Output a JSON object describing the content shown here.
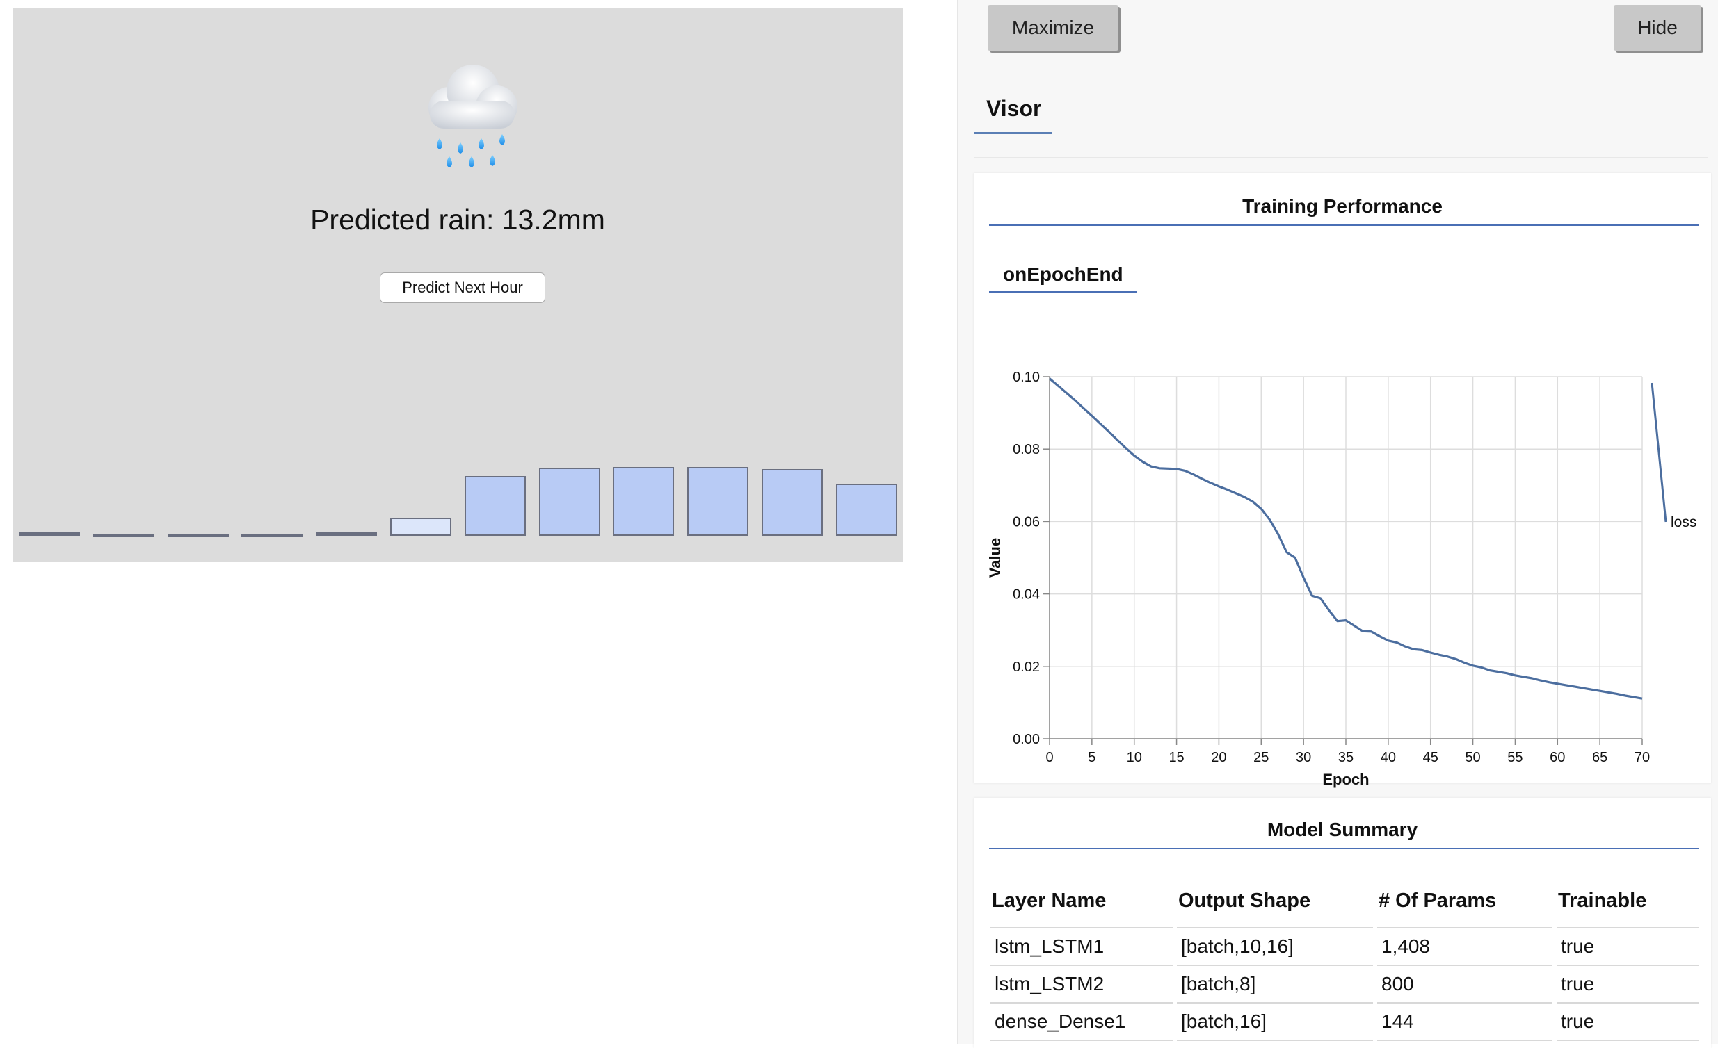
{
  "app": {
    "weather_icon": "cloud-with-rain-icon",
    "prediction_text": "Predicted rain: 13.2mm",
    "predict_button_label": "Predict Next Hour",
    "bars": [
      {
        "value": 0.012,
        "color": "#dde4f5"
      },
      {
        "value": 0.004,
        "color": "#dde4f5"
      },
      {
        "value": 0.002,
        "color": "#dde4f5"
      },
      {
        "value": 0.002,
        "color": "#dde4f5"
      },
      {
        "value": 0.012,
        "color": "#dde4f5"
      },
      {
        "value": 0.066,
        "color": "#dce6fa"
      },
      {
        "value": 0.214,
        "color": "#b8cbf5"
      },
      {
        "value": 0.245,
        "color": "#b8cbf5"
      },
      {
        "value": 0.248,
        "color": "#b8cbf5"
      },
      {
        "value": 0.248,
        "color": "#b8cbf5"
      },
      {
        "value": 0.24,
        "color": "#b8cbf5"
      },
      {
        "value": 0.187,
        "color": "#b8cbf5"
      }
    ]
  },
  "visor": {
    "maximize_label": "Maximize",
    "hide_label": "Hide",
    "tab_label": "Visor",
    "performance": {
      "title": "Training Performance",
      "subtab": "onEpochEnd"
    },
    "summary": {
      "title": "Model Summary",
      "columns": [
        "Layer Name",
        "Output Shape",
        "# Of Params",
        "Trainable"
      ],
      "rows": [
        [
          "lstm_LSTM1",
          "[batch,10,16]",
          "1,408",
          "true"
        ],
        [
          "lstm_LSTM2",
          "[batch,8]",
          "800",
          "true"
        ],
        [
          "dense_Dense1",
          "[batch,16]",
          "144",
          "true"
        ]
      ]
    }
  },
  "chart_data": {
    "type": "line",
    "xlabel": "Epoch",
    "ylabel": "Value",
    "xlim": [
      0,
      70
    ],
    "ylim": [
      0,
      0.1
    ],
    "xticks": [
      "0",
      "5",
      "10",
      "15",
      "20",
      "25",
      "30",
      "35",
      "40",
      "45",
      "50",
      "55",
      "60",
      "65",
      "70"
    ],
    "yticks": [
      "0.00",
      "0.02",
      "0.04",
      "0.06",
      "0.08",
      "0.10"
    ],
    "grid": true,
    "legend_position": "top-right",
    "line_color": "#4c6e9f",
    "series": [
      {
        "name": "loss",
        "x": [
          0,
          1,
          2,
          3,
          4,
          5,
          6,
          7,
          8,
          9,
          10,
          11,
          12,
          13,
          14,
          15,
          16,
          17,
          18,
          19,
          20,
          21,
          22,
          23,
          24,
          25,
          26,
          27,
          28,
          29,
          30,
          31,
          32,
          33,
          34,
          35,
          36,
          37,
          38,
          39,
          40,
          41,
          42,
          43,
          44,
          45,
          46,
          47,
          48,
          49,
          50,
          51,
          52,
          53,
          54,
          55,
          56,
          57,
          58,
          59,
          60,
          61,
          62,
          63,
          64,
          65,
          66,
          67,
          68,
          69,
          70
        ],
        "y": [
          0.0995,
          0.0975,
          0.0955,
          0.0935,
          0.0913,
          0.0892,
          0.087,
          0.0848,
          0.0825,
          0.0803,
          0.0782,
          0.0765,
          0.0752,
          0.0747,
          0.0746,
          0.0745,
          0.074,
          0.073,
          0.0718,
          0.0707,
          0.0697,
          0.0688,
          0.0678,
          0.0668,
          0.0655,
          0.0635,
          0.0605,
          0.0565,
          0.0515,
          0.05,
          0.0445,
          0.0395,
          0.0388,
          0.0355,
          0.0325,
          0.0327,
          0.0312,
          0.0297,
          0.0296,
          0.0283,
          0.0271,
          0.0266,
          0.0255,
          0.0247,
          0.0245,
          0.0238,
          0.0232,
          0.0227,
          0.022,
          0.021,
          0.0202,
          0.0197,
          0.0189,
          0.0185,
          0.0181,
          0.0175,
          0.0171,
          0.0167,
          0.0161,
          0.0156,
          0.0152,
          0.0148,
          0.0144,
          0.014,
          0.0136,
          0.0132,
          0.0128,
          0.0124,
          0.0119,
          0.0115,
          0.0111
        ]
      }
    ]
  }
}
